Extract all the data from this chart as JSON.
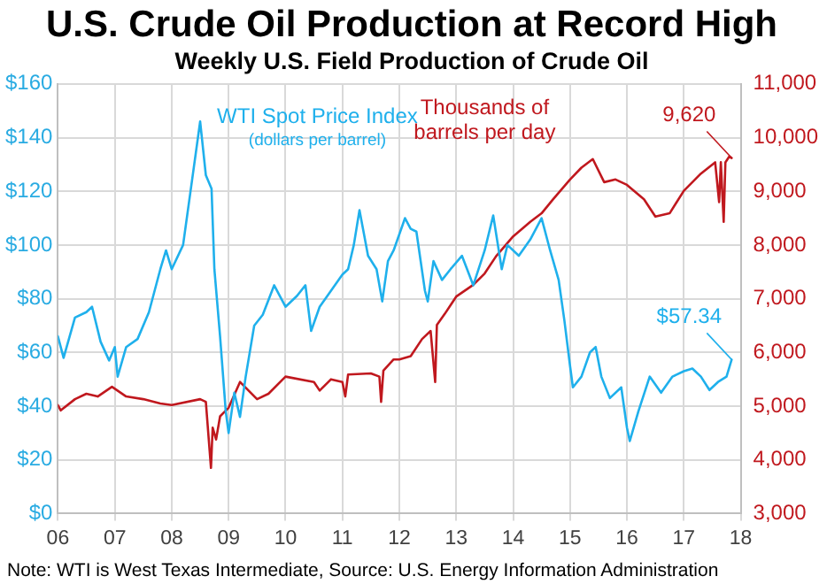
{
  "chart_data": {
    "type": "line",
    "title": "U.S. Crude Oil Production at Record High",
    "subtitle": "Weekly U.S. Field Production of Crude Oil",
    "annotations": [
      "(dollars per barrel)",
      "Note: WTI is West Texas Intermediate, Source: U.S. Energy Information Administration"
    ],
    "xlim": [
      2006,
      2018
    ],
    "xticks": [
      {
        "value": 2006,
        "label": "06"
      },
      {
        "value": 2007,
        "label": "07"
      },
      {
        "value": 2008,
        "label": "08"
      },
      {
        "value": 2009,
        "label": "09"
      },
      {
        "value": 2010,
        "label": "10"
      },
      {
        "value": 2011,
        "label": "11"
      },
      {
        "value": 2012,
        "label": "12"
      },
      {
        "value": 2013,
        "label": "13"
      },
      {
        "value": 2014,
        "label": "14"
      },
      {
        "value": 2015,
        "label": "15"
      },
      {
        "value": 2016,
        "label": "16"
      },
      {
        "value": 2017,
        "label": "17"
      },
      {
        "value": 2018,
        "label": "18"
      }
    ],
    "ylim": [
      0,
      160
    ],
    "yticks": [
      {
        "value": 0,
        "label": "$0"
      },
      {
        "value": 20,
        "label": "$20"
      },
      {
        "value": 40,
        "label": "$40"
      },
      {
        "value": 60,
        "label": "$60"
      },
      {
        "value": 80,
        "label": "$80"
      },
      {
        "value": 100,
        "label": "$100"
      },
      {
        "value": 120,
        "label": "$120"
      },
      {
        "value": 140,
        "label": "$140"
      },
      {
        "value": 160,
        "label": "$160"
      }
    ],
    "y2lim": [
      3000,
      11000
    ],
    "y2ticks": [
      {
        "value": 3000,
        "label": "3,000"
      },
      {
        "value": 4000,
        "label": "4,000"
      },
      {
        "value": 5000,
        "label": "5,000"
      },
      {
        "value": 6000,
        "label": "6,000"
      },
      {
        "value": 7000,
        "label": "7,000"
      },
      {
        "value": 8000,
        "label": "8,000"
      },
      {
        "value": 9000,
        "label": "9,000"
      },
      {
        "value": 10000,
        "label": "10,000"
      },
      {
        "value": 11000,
        "label": "11,000"
      }
    ],
    "grid": true,
    "legend": false,
    "marker": "none",
    "series": [
      {
        "name": "WTI Spot Price Index",
        "color": "#1fb0ec",
        "axis": "y",
        "x": [
          2006.0,
          2006.1,
          2006.3,
          2006.5,
          2006.6,
          2006.75,
          2006.9,
          2007.0,
          2007.05,
          2007.2,
          2007.4,
          2007.6,
          2007.8,
          2007.9,
          2008.0,
          2008.2,
          2008.35,
          2008.5,
          2008.6,
          2008.7,
          2008.75,
          2008.85,
          2008.95,
          2009.0,
          2009.1,
          2009.2,
          2009.3,
          2009.45,
          2009.6,
          2009.8,
          2010.0,
          2010.2,
          2010.35,
          2010.45,
          2010.6,
          2010.8,
          2011.0,
          2011.1,
          2011.2,
          2011.3,
          2011.45,
          2011.6,
          2011.7,
          2011.8,
          2011.9,
          2012.1,
          2012.2,
          2012.3,
          2012.45,
          2012.5,
          2012.6,
          2012.75,
          2012.9,
          2013.1,
          2013.3,
          2013.5,
          2013.65,
          2013.8,
          2013.9,
          2014.1,
          2014.3,
          2014.5,
          2014.65,
          2014.8,
          2014.9,
          2015.0,
          2015.05,
          2015.2,
          2015.35,
          2015.45,
          2015.55,
          2015.7,
          2015.9,
          2016.0,
          2016.05,
          2016.2,
          2016.4,
          2016.6,
          2016.8,
          2017.0,
          2017.15,
          2017.3,
          2017.45,
          2017.6,
          2017.75,
          2017.84
        ],
        "values": [
          66,
          58,
          73,
          75,
          77,
          64,
          57,
          62,
          51,
          62,
          65,
          75,
          91,
          98,
          91,
          100,
          123,
          146,
          126,
          121,
          91,
          66,
          38,
          30,
          45,
          36,
          51,
          70,
          74,
          85,
          77,
          81,
          85,
          68,
          77,
          83,
          89,
          91,
          100,
          113,
          96,
          91,
          79,
          94,
          98,
          110,
          106,
          105,
          83,
          79,
          94,
          87,
          91,
          96,
          85,
          98,
          111,
          91,
          100,
          96,
          102,
          110,
          98,
          87,
          72,
          55,
          47,
          51,
          60,
          62,
          51,
          43,
          47,
          32,
          27,
          38,
          51,
          45,
          51,
          53,
          54,
          51,
          46,
          49,
          51,
          57.34
        ],
        "value_labels": [
          null,
          null,
          null,
          null,
          null,
          null,
          null,
          null,
          null,
          null,
          null,
          null,
          null,
          null,
          null,
          null,
          null,
          null,
          null,
          null,
          null,
          null,
          null,
          null,
          null,
          null,
          null,
          null,
          null,
          null,
          null,
          null,
          null,
          null,
          null,
          null,
          null,
          null,
          null,
          null,
          null,
          null,
          null,
          null,
          null,
          null,
          null,
          null,
          null,
          null,
          null,
          null,
          null,
          null,
          null,
          null,
          null,
          null,
          null,
          null,
          null,
          null,
          null,
          null,
          null,
          null,
          null,
          null,
          null,
          null,
          null,
          null,
          null,
          null,
          null,
          null,
          null,
          null,
          null,
          null,
          null,
          null,
          null,
          null,
          null,
          "$57.34"
        ]
      },
      {
        "name": "Thousands of barrels per day",
        "color": "#c0181e",
        "axis": "y2",
        "x": [
          2006.0,
          2006.05,
          2006.3,
          2006.5,
          2006.7,
          2006.95,
          2007.2,
          2007.5,
          2007.8,
          2008.0,
          2008.5,
          2008.6,
          2008.69,
          2008.72,
          2008.78,
          2008.85,
          2009.0,
          2009.2,
          2009.5,
          2009.7,
          2010.0,
          2010.5,
          2010.6,
          2010.8,
          2011.0,
          2011.05,
          2011.1,
          2011.5,
          2011.65,
          2011.68,
          2011.72,
          2011.9,
          2012.0,
          2012.2,
          2012.4,
          2012.55,
          2012.63,
          2012.66,
          2012.8,
          2013.0,
          2013.3,
          2013.5,
          2013.7,
          2014.0,
          2014.3,
          2014.5,
          2014.7,
          2015.0,
          2015.2,
          2015.4,
          2015.6,
          2015.8,
          2016.0,
          2016.3,
          2016.5,
          2016.75,
          2017.0,
          2017.3,
          2017.55,
          2017.62,
          2017.65,
          2017.7,
          2017.73,
          2017.8,
          2017.84
        ],
        "values": [
          5020,
          4920,
          5130,
          5230,
          5180,
          5360,
          5180,
          5130,
          5050,
          5020,
          5130,
          5080,
          3850,
          4600,
          4380,
          4810,
          4970,
          5450,
          5130,
          5230,
          5550,
          5450,
          5290,
          5500,
          5450,
          5180,
          5590,
          5610,
          5550,
          5080,
          5660,
          5870,
          5870,
          5930,
          6250,
          6400,
          5450,
          6510,
          6720,
          7040,
          7260,
          7470,
          7790,
          8160,
          8430,
          8590,
          8850,
          9220,
          9440,
          9600,
          9170,
          9220,
          9120,
          8850,
          8530,
          8590,
          9010,
          9330,
          9540,
          8800,
          9540,
          8430,
          9540,
          9650,
          9620
        ],
        "value_labels": [
          null,
          null,
          null,
          null,
          null,
          null,
          null,
          null,
          null,
          null,
          null,
          null,
          null,
          null,
          null,
          null,
          null,
          null,
          null,
          null,
          null,
          null,
          null,
          null,
          null,
          null,
          null,
          null,
          null,
          null,
          null,
          null,
          null,
          null,
          null,
          null,
          null,
          null,
          null,
          null,
          null,
          null,
          null,
          null,
          null,
          null,
          null,
          null,
          null,
          null,
          null,
          null,
          null,
          null,
          null,
          null,
          null,
          null,
          null,
          null,
          null,
          null,
          null,
          null,
          "9,620"
        ]
      }
    ]
  }
}
